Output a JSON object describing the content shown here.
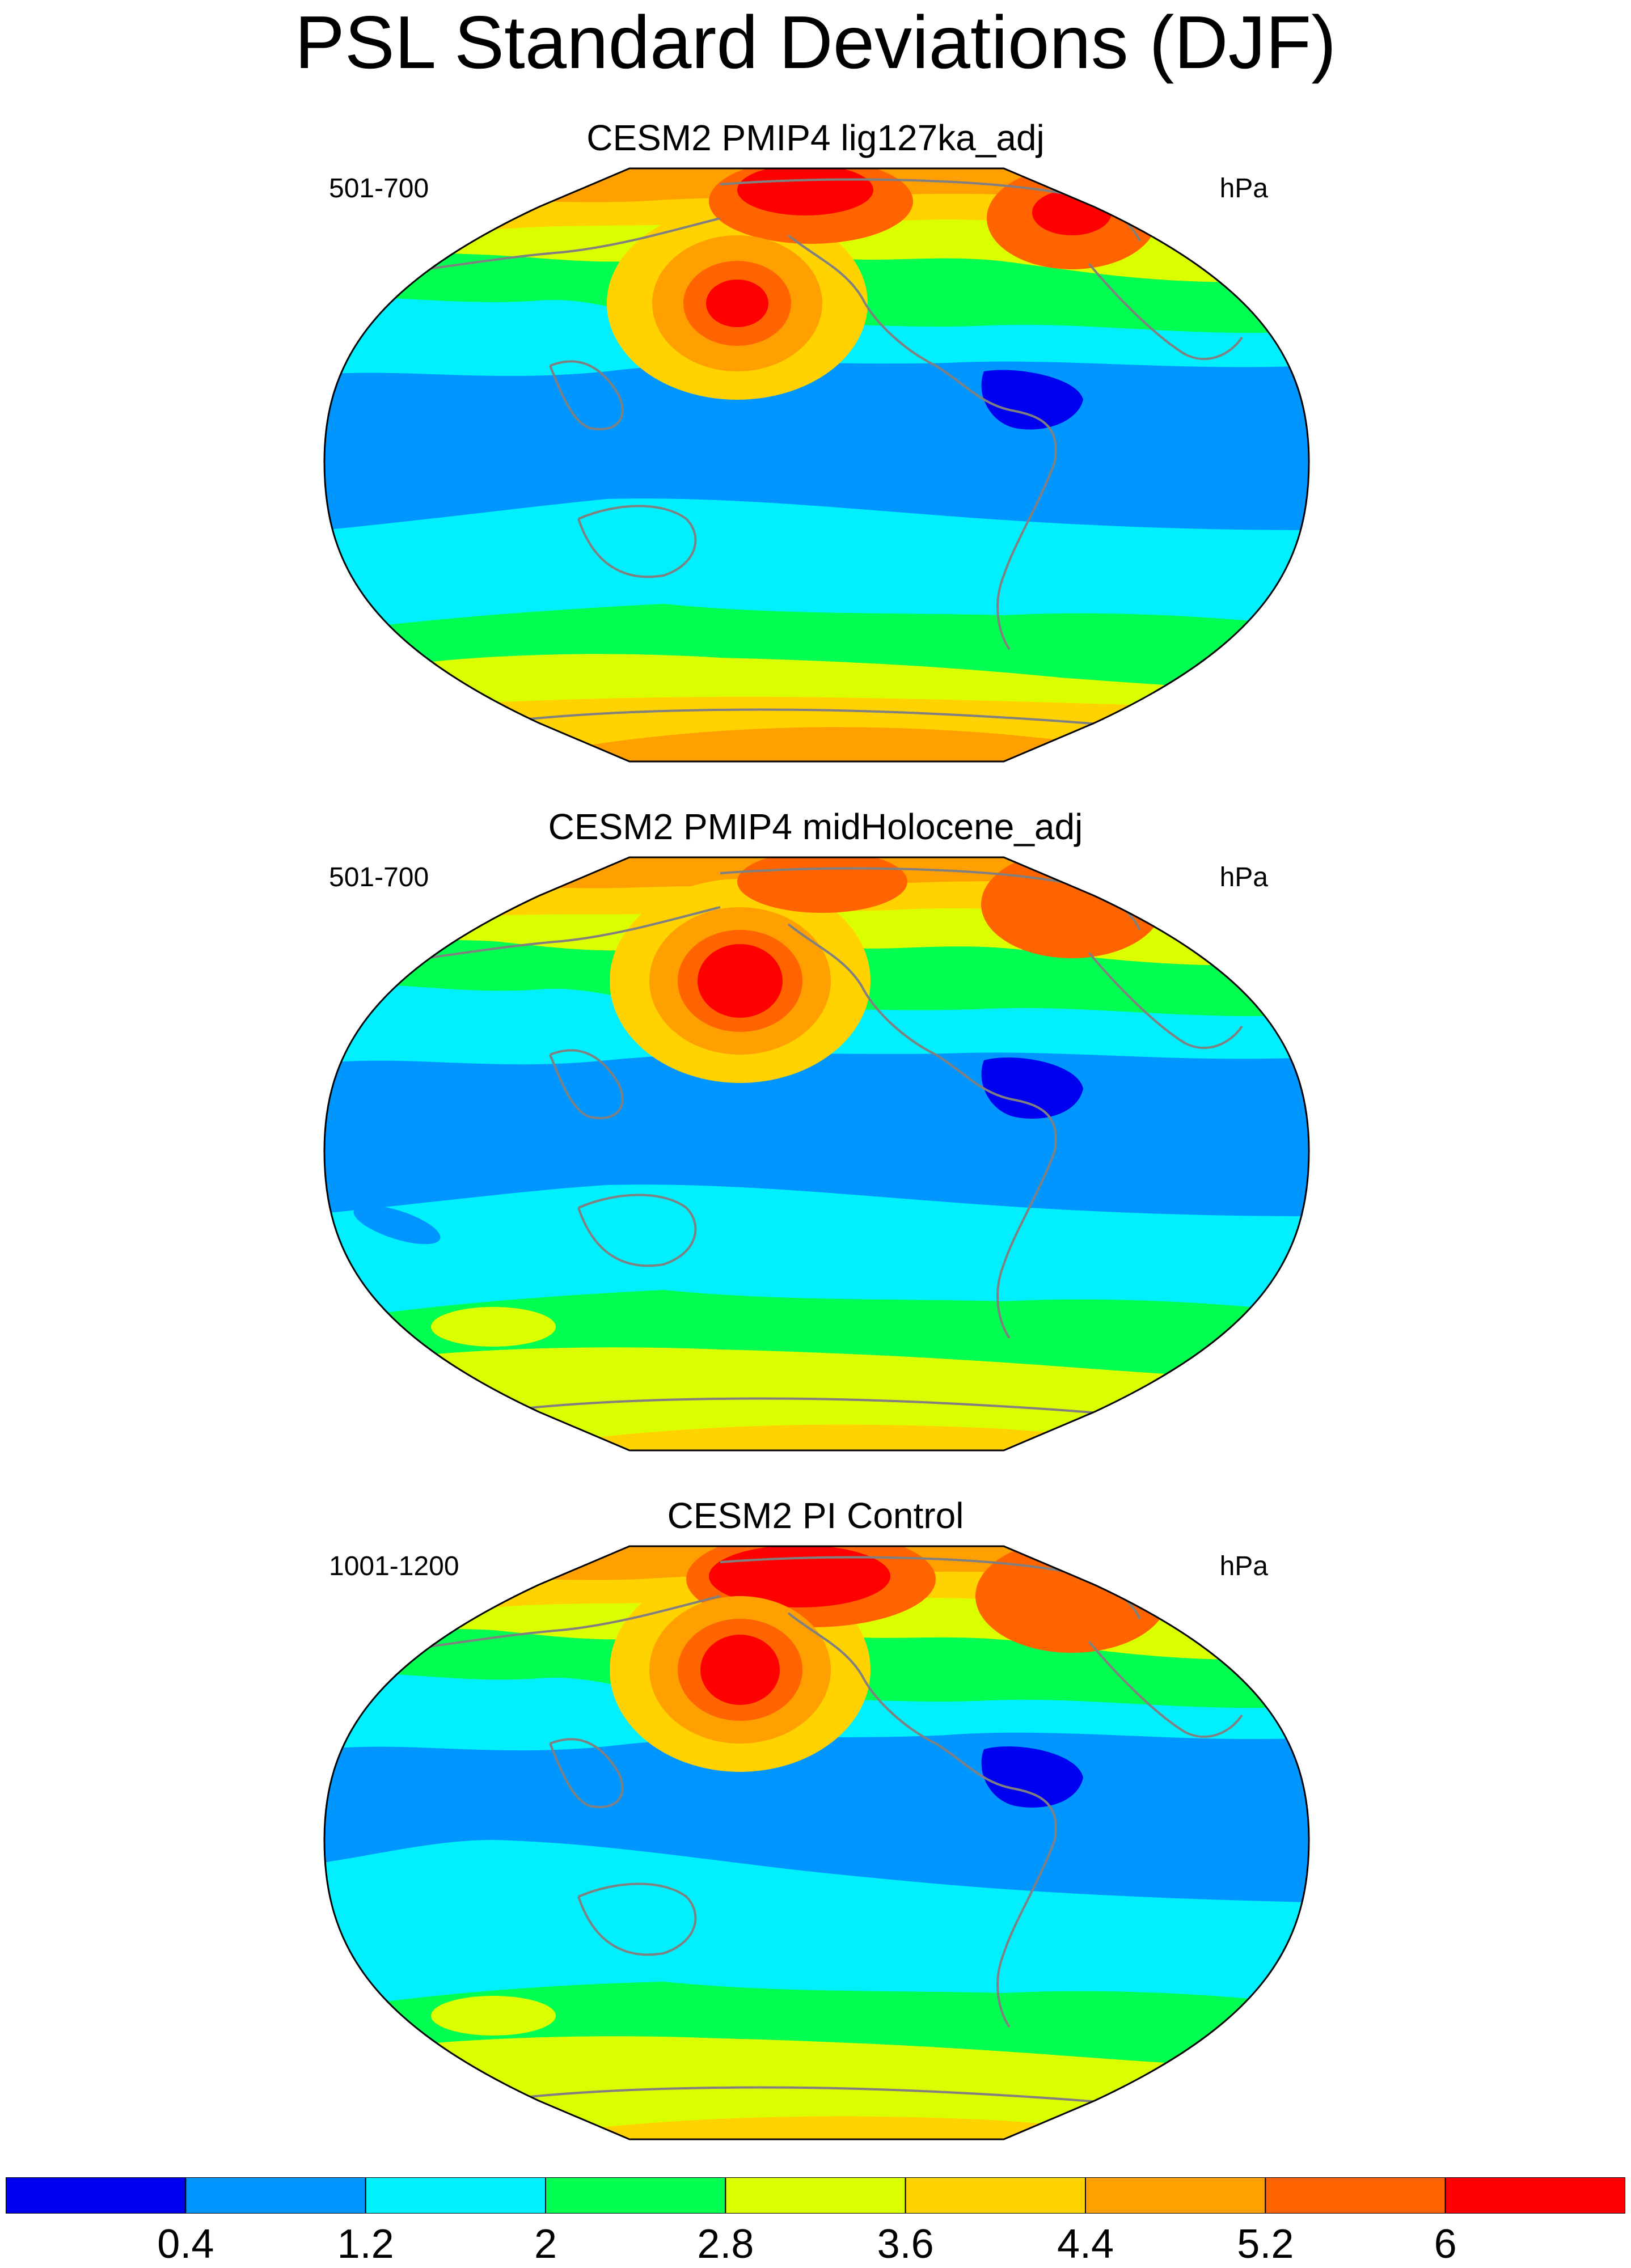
{
  "title": "PSL Standard Deviations (DJF)",
  "units": "hPa",
  "panels": [
    {
      "title": "CESM2 PMIP4 lig127ka_adj",
      "period": "501-700",
      "units": "hPa"
    },
    {
      "title": "CESM2 PMIP4 midHolocene_adj",
      "period": "501-700",
      "units": "hPa"
    },
    {
      "title": "CESM2 PI Control",
      "period": "1001-1200",
      "units": "hPa"
    }
  ],
  "colorbar": {
    "labels": [
      "0.4",
      "1.2",
      "2",
      "2.8",
      "3.6",
      "4.4",
      "5.2",
      "6"
    ],
    "colors": [
      "#0000f0",
      "#0096ff",
      "#00f0ff",
      "#00ff50",
      "#dcff00",
      "#ffd200",
      "#ffa000",
      "#ff6400",
      "#ff0000"
    ]
  },
  "coastline_color": "#808080"
}
